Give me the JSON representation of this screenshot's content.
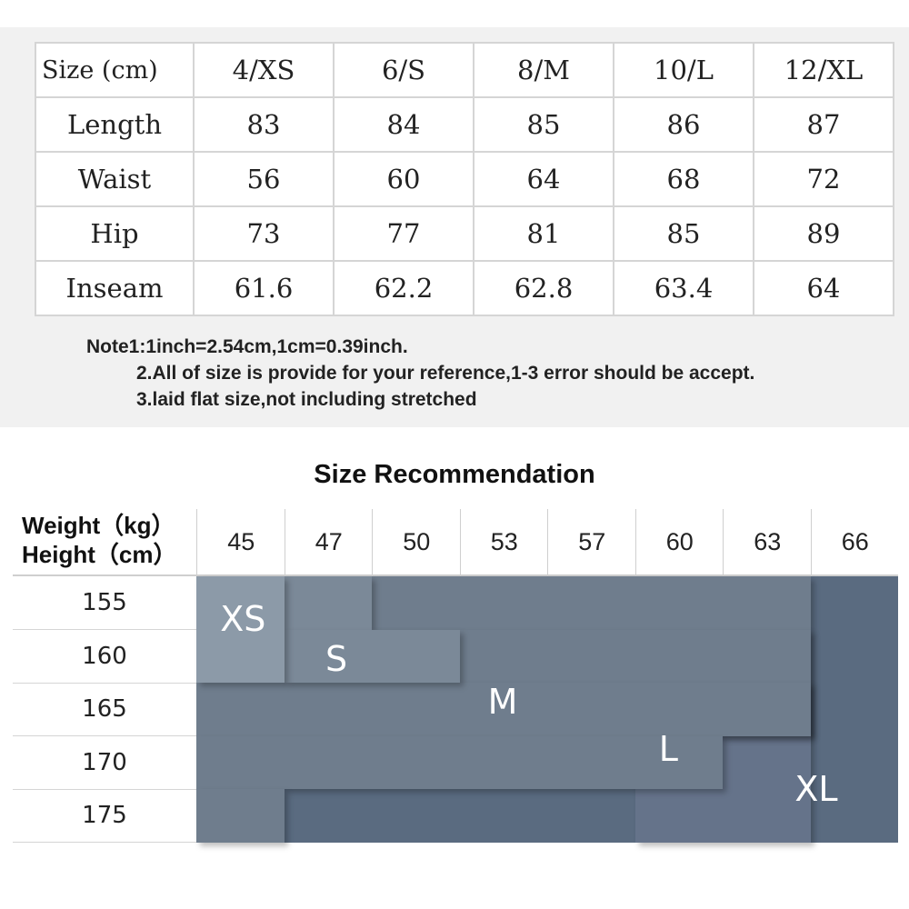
{
  "size_table": {
    "header": [
      "Size (cm)",
      "4/XS",
      "6/S",
      "8/M",
      "10/L",
      "12/XL"
    ],
    "rows": [
      {
        "label": "Length",
        "values": [
          "83",
          "84",
          "85",
          "86",
          "87"
        ]
      },
      {
        "label": "Waist",
        "values": [
          "56",
          "60",
          "64",
          "68",
          "72"
        ]
      },
      {
        "label": "Hip",
        "values": [
          "73",
          "77",
          "81",
          "85",
          "89"
        ]
      },
      {
        "label": "Inseam",
        "values": [
          "61.6",
          "62.2",
          "62.8",
          "63.4",
          "64"
        ]
      }
    ]
  },
  "notes": {
    "note1": "Note1:1inch=2.54cm,1cm=0.39inch.",
    "note2": "2.All of size is provide for your reference,1-3 error should be accept.",
    "note3": "3.laid flat size,not including stretched"
  },
  "recommendation": {
    "title": "Size Recommendation",
    "weight_label": "Weight（kg）",
    "height_label": "Height（cm）",
    "weights": [
      "45",
      "47",
      "50",
      "53",
      "57",
      "60",
      "63",
      "66"
    ],
    "heights": [
      "155",
      "160",
      "165",
      "170",
      "175"
    ],
    "zone_labels": {
      "xs": "XS",
      "s": "S",
      "m": "M",
      "l": "L",
      "xl": "XL"
    },
    "colors": {
      "xs": "#8c9aa8",
      "s": "#7b8998",
      "m": "#6f7d8d",
      "l": "#65738a",
      "xl": "#5a6b80"
    }
  }
}
